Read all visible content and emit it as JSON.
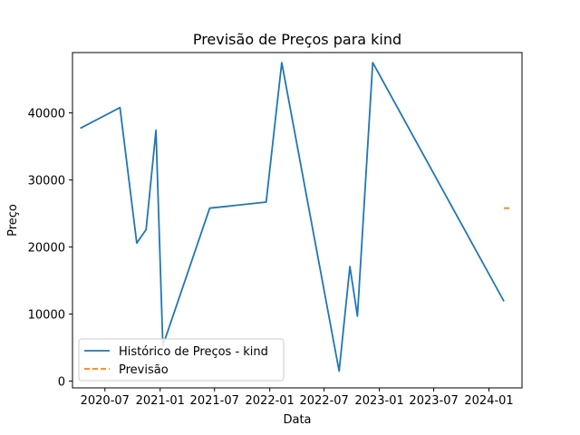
{
  "chart_data": {
    "type": "line",
    "title": "Previsão de Preços para kind",
    "xlabel": "Data",
    "ylabel": "Preço",
    "x_ticks": [
      "2020-07",
      "2021-01",
      "2021-07",
      "2022-01",
      "2022-07",
      "2023-01",
      "2023-07",
      "2024-01"
    ],
    "y_ticks": [
      0,
      10000,
      20000,
      30000,
      40000
    ],
    "ylim": [
      -1000,
      49000
    ],
    "xlim": [
      "2020-03-15",
      "2024-04-20"
    ],
    "grid": false,
    "legend_position": "lower-left",
    "series": [
      {
        "name": "Histórico de Preços - kind",
        "color": "#1f77b4",
        "style": "solid",
        "points": [
          {
            "x": "2020-04-10",
            "y": 37700
          },
          {
            "x": "2020-08-20",
            "y": 40800
          },
          {
            "x": "2020-10-15",
            "y": 20600
          },
          {
            "x": "2020-11-15",
            "y": 22600
          },
          {
            "x": "2020-12-18",
            "y": 37400
          },
          {
            "x": "2021-01-10",
            "y": 5300
          },
          {
            "x": "2021-06-15",
            "y": 25800
          },
          {
            "x": "2021-12-20",
            "y": 26700
          },
          {
            "x": "2022-02-10",
            "y": 47500
          },
          {
            "x": "2022-08-20",
            "y": 1500
          },
          {
            "x": "2022-09-25",
            "y": 17100
          },
          {
            "x": "2022-10-20",
            "y": 9700
          },
          {
            "x": "2022-12-10",
            "y": 47500
          },
          {
            "x": "2024-02-20",
            "y": 11900
          }
        ]
      },
      {
        "name": "Previsão",
        "color": "#ff7f0e",
        "style": "dashed",
        "points": [
          {
            "x": "2024-02-20",
            "y": 25800
          },
          {
            "x": "2024-03-15",
            "y": 25800
          }
        ]
      }
    ]
  }
}
